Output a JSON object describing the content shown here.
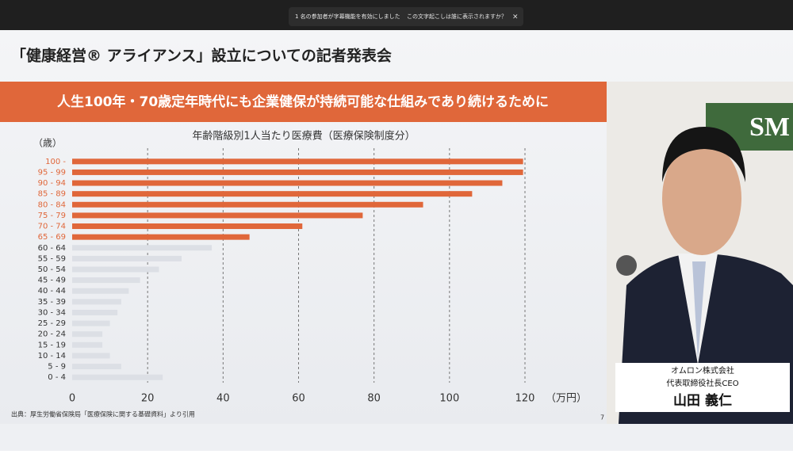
{
  "meeting_bar": {
    "notice": "1 名の参加者が字幕機能を有効にしました",
    "question": "この文字起こしは誰に表示されますか？"
  },
  "slide": {
    "title": "「健康経営® アライアンス」設立についての記者発表会",
    "banner": "人生100年・70歳定年時代にも企業健保が持続可能な仕組みであり続けるために",
    "source": "出典：厚生労働省保険局「医療保険に関する基礎資料」より引用",
    "page": "7"
  },
  "speaker": {
    "company": "オムロン株式会社",
    "role": "代表取締役社長CEO",
    "name": "山田 義仁",
    "backdrop_logo": "SM"
  },
  "chart_data": {
    "type": "hbar",
    "title": "年齢階級別1人当たり医療費（医療保険制度分）",
    "y_label": "（歳）",
    "x_label": "（万円）",
    "categories": [
      "100 -",
      "95 - 99",
      "90 - 94",
      "85 - 89",
      "80 - 84",
      "75 - 79",
      "70 - 74",
      "65 - 69",
      "60 - 64",
      "55 - 59",
      "50 - 54",
      "45 - 49",
      "40 - 44",
      "35 - 39",
      "30 - 34",
      "25 - 29",
      "20 - 24",
      "15 - 19",
      "10 - 14",
      "5 - 9",
      "0 - 4"
    ],
    "values": [
      119.5,
      119.5,
      114,
      106,
      93,
      77,
      61,
      47,
      37,
      29,
      23,
      18,
      15,
      13,
      12,
      10,
      8,
      8,
      10,
      13,
      24
    ],
    "colors": [
      "#e0673a",
      "#e0673a",
      "#e0673a",
      "#e0673a",
      "#e0673a",
      "#e0673a",
      "#e0673a",
      "#e0673a",
      "#dcdfe5",
      "#dcdfe5",
      "#dcdfe5",
      "#dcdfe5",
      "#dcdfe5",
      "#dcdfe5",
      "#dcdfe5",
      "#dcdfe5",
      "#dcdfe5",
      "#dcdfe5",
      "#dcdfe5",
      "#dcdfe5",
      "#dcdfe5"
    ],
    "xlim": [
      0,
      120
    ],
    "xticks": [
      0,
      20,
      40,
      60,
      80,
      100,
      120
    ],
    "grid": true
  }
}
